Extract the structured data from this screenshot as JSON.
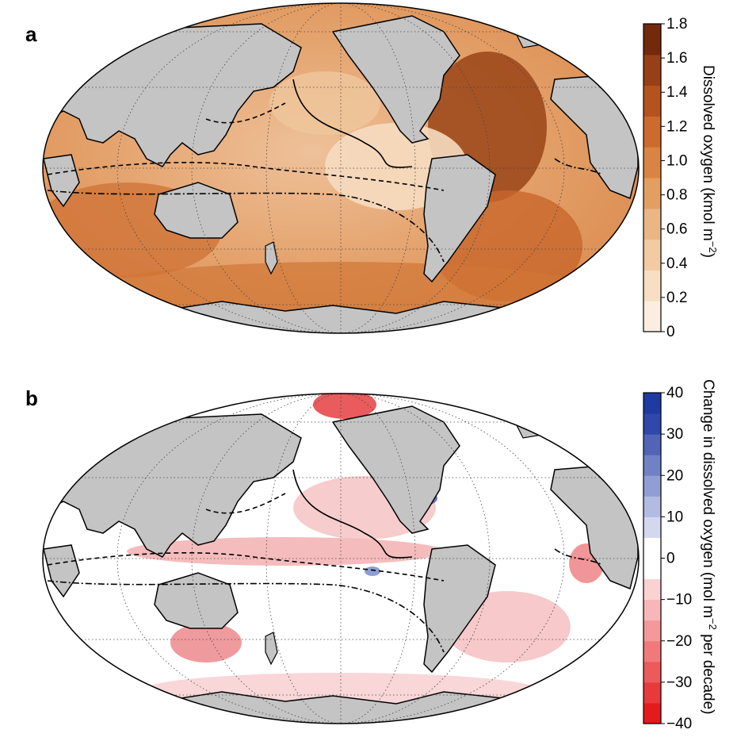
{
  "panels": [
    {
      "letter": "a",
      "colorbar": {
        "title": "Dissolved oxygen (kmol m",
        "title_sup": "−2",
        "title_end": ")",
        "ticks": [
          "0",
          "0.2",
          "0.4",
          "0.6",
          "0.8",
          "1.0",
          "1.2",
          "1.4",
          "1.6",
          "1.8"
        ],
        "colors": [
          "#fbeee0",
          "#f8dfc4",
          "#f2cba2",
          "#ebb684",
          "#e39e62",
          "#da8443",
          "#cd6a2e",
          "#b5531f",
          "#974015",
          "#73290b"
        ]
      }
    },
    {
      "letter": "b",
      "colorbar": {
        "title": "Change in dissolved oxygen (mol m",
        "title_sup": "−2",
        "title_end": " per decade)",
        "ticks": [
          "−40",
          "−30",
          "−20",
          "−10",
          "0",
          "10",
          "20",
          "30",
          "40"
        ],
        "colors": [
          "#e41a1c",
          "#e83a3c",
          "#ec5a5c",
          "#f07a7b",
          "#f49899",
          "#f7b6b7",
          "#fad2d2",
          "#ffffff",
          "#ffffff",
          "#d3d8ef",
          "#b2bbe2",
          "#919ed4",
          "#7181c6",
          "#5164b8",
          "#3048a9",
          "#1f3aa0"
        ]
      }
    }
  ],
  "map": {
    "projection": "Mollweide",
    "land_color": "#c4c4c4",
    "ocean_color_a": "#e8a66f",
    "ocean_color_b": "#ffffff"
  }
}
